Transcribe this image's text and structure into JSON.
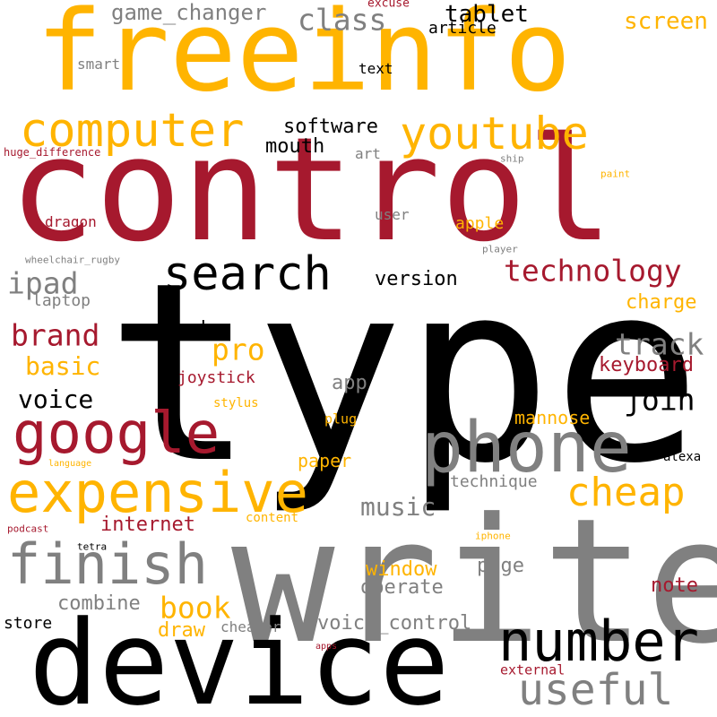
{
  "colors": {
    "gold": "#FFB400",
    "crimson": "#A6192E",
    "black": "#000000",
    "gray": "#808080"
  },
  "words": [
    {
      "text": "type",
      "color": "black"
    },
    {
      "text": "control",
      "color": "crimson"
    },
    {
      "text": "write",
      "color": "gray"
    },
    {
      "text": "freeinfo",
      "color": "gold"
    },
    {
      "text": "device",
      "color": "black"
    },
    {
      "text": "phone",
      "color": "gray"
    },
    {
      "text": "google",
      "color": "crimson"
    },
    {
      "text": "expensive",
      "color": "gold"
    },
    {
      "text": "finish",
      "color": "gray"
    },
    {
      "text": "number",
      "color": "black"
    },
    {
      "text": "computer",
      "color": "gold"
    },
    {
      "text": "youtube",
      "color": "gold"
    },
    {
      "text": "search",
      "color": "black"
    },
    {
      "text": "cheap",
      "color": "gold"
    },
    {
      "text": "useful",
      "color": "gray"
    },
    {
      "text": "technology",
      "color": "crimson"
    },
    {
      "text": "class",
      "color": "gray"
    },
    {
      "text": "brand",
      "color": "crimson"
    },
    {
      "text": "join",
      "color": "black"
    },
    {
      "text": "track",
      "color": "gray"
    },
    {
      "text": "pro",
      "color": "gold"
    },
    {
      "text": "ipad",
      "color": "gray"
    },
    {
      "text": "book",
      "color": "gold"
    },
    {
      "text": "voice",
      "color": "black"
    },
    {
      "text": "basic",
      "color": "gold"
    },
    {
      "text": "screen",
      "color": "gold"
    },
    {
      "text": "tablet",
      "color": "black"
    },
    {
      "text": "music",
      "color": "gray"
    },
    {
      "text": "game_changer",
      "color": "gray"
    },
    {
      "text": "software",
      "color": "black"
    },
    {
      "text": "version",
      "color": "black"
    },
    {
      "text": "keyboard",
      "color": "crimson"
    },
    {
      "text": "voice_control",
      "color": "gray"
    },
    {
      "text": "internet",
      "color": "crimson"
    },
    {
      "text": "window",
      "color": "gold"
    },
    {
      "text": "charge",
      "color": "gold"
    },
    {
      "text": "mannose",
      "color": "gold"
    },
    {
      "text": "mouth",
      "color": "black"
    },
    {
      "text": "tech",
      "color": "black"
    },
    {
      "text": "note",
      "color": "crimson"
    },
    {
      "text": "page",
      "color": "gray"
    },
    {
      "text": "operate",
      "color": "gray"
    },
    {
      "text": "combine",
      "color": "gray"
    },
    {
      "text": "paper",
      "color": "gold"
    },
    {
      "text": "technique",
      "color": "gray"
    },
    {
      "text": "app",
      "color": "gray"
    },
    {
      "text": "draw",
      "color": "gold"
    },
    {
      "text": "joystick",
      "color": "crimson"
    },
    {
      "text": "article",
      "color": "black"
    },
    {
      "text": "apple",
      "color": "gold"
    },
    {
      "text": "laptop",
      "color": "gray"
    },
    {
      "text": "dragon",
      "color": "crimson"
    },
    {
      "text": "store",
      "color": "black"
    },
    {
      "text": "cheaper",
      "color": "gray"
    },
    {
      "text": "external",
      "color": "crimson"
    },
    {
      "text": "text",
      "color": "black"
    },
    {
      "text": "smart",
      "color": "gray"
    },
    {
      "text": "user",
      "color": "gray"
    },
    {
      "text": "art",
      "color": "gray"
    },
    {
      "text": "stylus",
      "color": "gold"
    },
    {
      "text": "plug",
      "color": "gold"
    },
    {
      "text": "content",
      "color": "gold"
    },
    {
      "text": "alexa",
      "color": "black"
    },
    {
      "text": "excuse",
      "color": "crimson"
    },
    {
      "text": "huge_difference",
      "color": "crimson"
    },
    {
      "text": "wheelchair_rugby",
      "color": "gray"
    },
    {
      "text": "player",
      "color": "gray"
    },
    {
      "text": "ship",
      "color": "gray"
    },
    {
      "text": "paint",
      "color": "gold"
    },
    {
      "text": "language",
      "color": "gold"
    },
    {
      "text": "podcast",
      "color": "crimson"
    },
    {
      "text": "tetra",
      "color": "black"
    },
    {
      "text": "iphone",
      "color": "gold"
    },
    {
      "text": "apps",
      "color": "crimson"
    }
  ]
}
